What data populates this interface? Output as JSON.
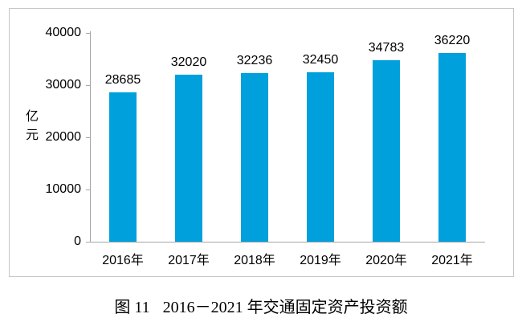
{
  "chart_data": {
    "type": "bar",
    "title": "",
    "categories": [
      "2016年",
      "2017年",
      "2018年",
      "2019年",
      "2020年",
      "2021年"
    ],
    "values": [
      28685,
      32020,
      32236,
      32450,
      34783,
      36220
    ],
    "value_labels": [
      "28685",
      "32020",
      "32236",
      "32450",
      "34783",
      "36220"
    ],
    "xlabel": "",
    "ylabel": "亿元",
    "ylim": [
      0,
      40000
    ],
    "yticks": [
      0,
      10000,
      20000,
      30000,
      40000
    ],
    "ytick_labels": [
      "0",
      "10000",
      "20000",
      "30000",
      "40000"
    ],
    "grid": "off",
    "legend": "none",
    "bar_color": "#00a0dc",
    "axis_color": "#a6a6a6",
    "frame_border_color": "#c6c6c6",
    "text_color": "#000000"
  },
  "caption": {
    "figure_label": "图 11",
    "title": "2016－2021 年交通固定资产投资额"
  }
}
